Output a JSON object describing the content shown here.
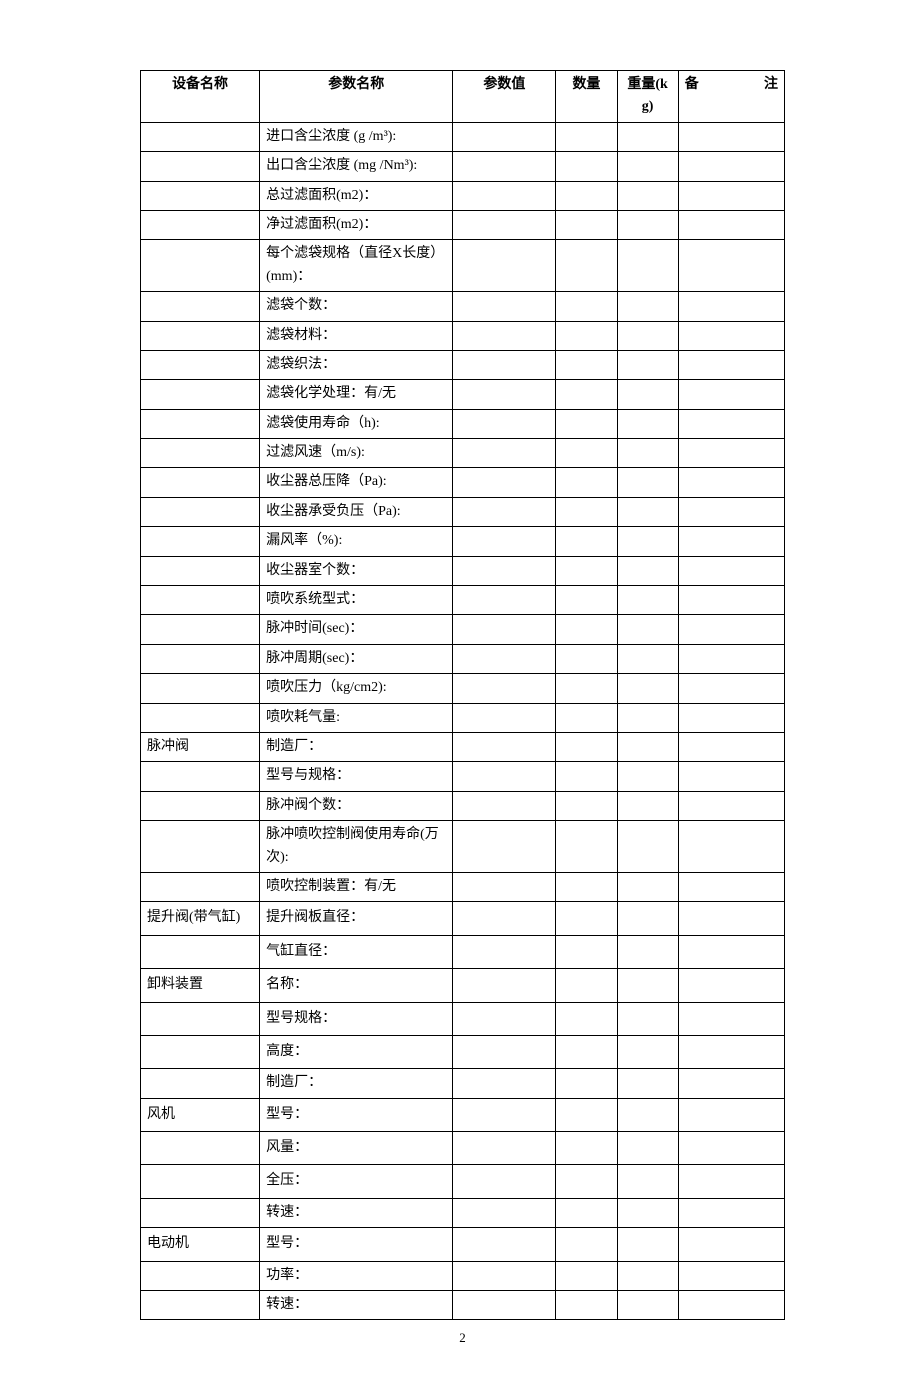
{
  "table": {
    "columns": {
      "device": "设备名称",
      "param": "参数名称",
      "value": "参数值",
      "qty": "数量",
      "weight": "重量(kg)",
      "remark": "备　注"
    },
    "col_widths": {
      "device": "18.5%",
      "param": "30%",
      "value": "16%",
      "qty": "9.5%",
      "weight": "9.5%",
      "remark": "16.5%"
    },
    "rows": [
      {
        "device": "",
        "param": "进口含尘浓度 (g /m³):",
        "value": "",
        "qty": "",
        "weight": "",
        "remark": ""
      },
      {
        "device": "",
        "param": "出口含尘浓度 (mg /Nm³):",
        "value": "",
        "qty": "",
        "weight": "",
        "remark": ""
      },
      {
        "device": "",
        "param": "总过滤面积(m2)：",
        "value": "",
        "qty": "",
        "weight": "",
        "remark": ""
      },
      {
        "device": "",
        "param": "净过滤面积(m2)：",
        "value": "",
        "qty": "",
        "weight": "",
        "remark": ""
      },
      {
        "device": "",
        "param": "每个滤袋规格（直径X长度）(mm)：",
        "value": "",
        "qty": "",
        "weight": "",
        "remark": ""
      },
      {
        "device": "",
        "param": "滤袋个数：",
        "value": "",
        "qty": "",
        "weight": "",
        "remark": ""
      },
      {
        "device": "",
        "param": "滤袋材料：",
        "value": "",
        "qty": "",
        "weight": "",
        "remark": ""
      },
      {
        "device": "",
        "param": "滤袋织法：",
        "value": "",
        "qty": "",
        "weight": "",
        "remark": ""
      },
      {
        "device": "",
        "param": "滤袋化学处理：有/无",
        "value": "",
        "qty": "",
        "weight": "",
        "remark": ""
      },
      {
        "device": "",
        "param": "滤袋使用寿命（h):",
        "value": "",
        "qty": "",
        "weight": "",
        "remark": ""
      },
      {
        "device": "",
        "param": "过滤风速（m/s):",
        "value": "",
        "qty": "",
        "weight": "",
        "remark": ""
      },
      {
        "device": "",
        "param": "收尘器总压降（Pa):",
        "value": "",
        "qty": "",
        "weight": "",
        "remark": ""
      },
      {
        "device": "",
        "param": "收尘器承受负压（Pa):",
        "value": "",
        "qty": "",
        "weight": "",
        "remark": ""
      },
      {
        "device": "",
        "param": "漏风率（%):",
        "value": "",
        "qty": "",
        "weight": "",
        "remark": ""
      },
      {
        "device": "",
        "param": "收尘器室个数：",
        "value": "",
        "qty": "",
        "weight": "",
        "remark": ""
      },
      {
        "device": "",
        "param": "喷吹系统型式：",
        "value": "",
        "qty": "",
        "weight": "",
        "remark": ""
      },
      {
        "device": "",
        "param": "脉冲时间(sec)：",
        "value": "",
        "qty": "",
        "weight": "",
        "remark": ""
      },
      {
        "device": "",
        "param": "脉冲周期(sec)：",
        "value": "",
        "qty": "",
        "weight": "",
        "remark": ""
      },
      {
        "device": "",
        "param": "喷吹压力（kg/cm2):",
        "value": "",
        "qty": "",
        "weight": "",
        "remark": ""
      },
      {
        "device": "",
        "param": "喷吹耗气量:",
        "value": "",
        "qty": "",
        "weight": "",
        "remark": ""
      },
      {
        "device": "脉冲阀",
        "param": "制造厂：",
        "value": "",
        "qty": "",
        "weight": "",
        "remark": ""
      },
      {
        "device": "",
        "param": "型号与规格：",
        "value": "",
        "qty": "",
        "weight": "",
        "remark": ""
      },
      {
        "device": "",
        "param": "脉冲阀个数：",
        "value": "",
        "qty": "",
        "weight": "",
        "remark": ""
      },
      {
        "device": "",
        "param": "脉冲喷吹控制阀使用寿命(万次):",
        "value": "",
        "qty": "",
        "weight": "",
        "remark": ""
      },
      {
        "device": "",
        "param": "喷吹控制装置：有/无",
        "value": "",
        "qty": "",
        "weight": "",
        "remark": ""
      },
      {
        "device": "提升阀(带气缸)",
        "param": "提升阀板直径：",
        "value": "",
        "qty": "",
        "weight": "",
        "remark": "",
        "tall": true
      },
      {
        "device": "",
        "param": "气缸直径：",
        "value": "",
        "qty": "",
        "weight": "",
        "remark": "",
        "tall": true
      },
      {
        "device": "卸料装置",
        "param": "名称：",
        "value": "",
        "qty": "",
        "weight": "",
        "remark": "",
        "tall": true
      },
      {
        "device": "",
        "param": "型号规格：",
        "value": "",
        "qty": "",
        "weight": "",
        "remark": "",
        "tall": true
      },
      {
        "device": "",
        "param": "高度：",
        "value": "",
        "qty": "",
        "weight": "",
        "remark": "",
        "tall": true
      },
      {
        "device": "",
        "param": "制造厂：",
        "value": "",
        "qty": "",
        "weight": "",
        "remark": ""
      },
      {
        "device": "风机",
        "param": "型号：",
        "value": "",
        "qty": "",
        "weight": "",
        "remark": "",
        "tall": true
      },
      {
        "device": "",
        "param": "风量：",
        "value": "",
        "qty": "",
        "weight": "",
        "remark": "",
        "tall": true
      },
      {
        "device": "",
        "param": "全压：",
        "value": "",
        "qty": "",
        "weight": "",
        "remark": "",
        "tall": true
      },
      {
        "device": "",
        "param": "转速：",
        "value": "",
        "qty": "",
        "weight": "",
        "remark": ""
      },
      {
        "device": "电动机",
        "param": "型号：",
        "value": "",
        "qty": "",
        "weight": "",
        "remark": "",
        "tall": true
      },
      {
        "device": "",
        "param": "功率：",
        "value": "",
        "qty": "",
        "weight": "",
        "remark": ""
      },
      {
        "device": "",
        "param": "转速：",
        "value": "",
        "qty": "",
        "weight": "",
        "remark": ""
      }
    ]
  },
  "page_number": "2"
}
